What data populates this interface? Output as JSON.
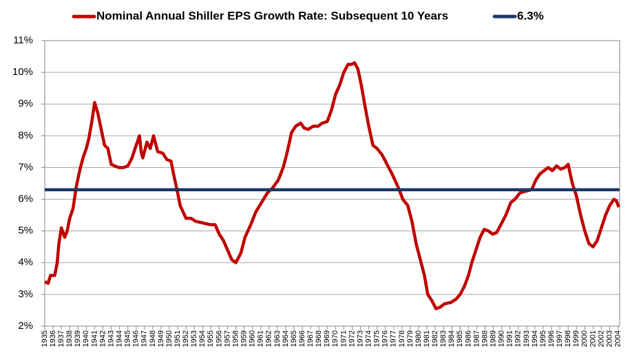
{
  "chart_data": {
    "type": "line",
    "series": [
      {
        "name": "Nominal Annual Shiller EPS Growth Rate: Subsequent 10 Years",
        "color": "#c00000",
        "x": [
          1935.0,
          1935.4,
          1935.7,
          1936.2,
          1936.5,
          1936.7,
          1937.0,
          1937.4,
          1937.7,
          1938.0,
          1938.4,
          1938.8,
          1939.2,
          1939.6,
          1940.0,
          1940.3,
          1940.7,
          1941.0,
          1941.4,
          1941.8,
          1942.2,
          1942.6,
          1943.0,
          1943.4,
          1943.9,
          1944.5,
          1945.0,
          1945.5,
          1946.0,
          1946.4,
          1946.6,
          1946.8,
          1947.3,
          1947.7,
          1948.1,
          1948.6,
          1949.2,
          1949.7,
          1950.2,
          1950.5,
          1951.0,
          1951.3,
          1952.0,
          1952.6,
          1953.2,
          1954.1,
          1954.9,
          1955.5,
          1956.0,
          1956.5,
          1957.0,
          1957.5,
          1958.0,
          1958.6,
          1959.1,
          1959.8,
          1960.4,
          1961.1,
          1961.8,
          1962.4,
          1963.1,
          1963.7,
          1964.2,
          1964.7,
          1965.2,
          1965.8,
          1966.2,
          1966.7,
          1967.3,
          1967.9,
          1968.4,
          1969.0,
          1969.5,
          1970.0,
          1970.5,
          1971.0,
          1971.5,
          1971.9,
          1972.3,
          1972.7,
          1973.1,
          1973.5,
          1974.0,
          1974.5,
          1975.0,
          1975.6,
          1976.2,
          1976.8,
          1977.5,
          1978.1,
          1978.7,
          1979.2,
          1979.7,
          1980.2,
          1980.7,
          1981.1,
          1981.6,
          1982.1,
          1982.6,
          1983.1,
          1983.9,
          1984.5,
          1985.0,
          1985.5,
          1986.0,
          1986.4,
          1986.9,
          1987.4,
          1987.9,
          1988.4,
          1988.9,
          1989.4,
          1989.9,
          1990.5,
          1991.1,
          1991.6,
          1992.2,
          1992.8,
          1993.6,
          1994.1,
          1994.6,
          1995.1,
          1995.6,
          1996.1,
          1996.6,
          1997.1,
          1997.6,
          1998.0,
          1998.5,
          1999.0,
          1999.5,
          2000.0,
          2000.5,
          2001.0,
          2001.5,
          2002.0,
          2002.5,
          2003.0,
          2003.5,
          2003.8,
          2004.1
        ],
        "values": [
          3.4,
          3.35,
          3.6,
          3.6,
          4.0,
          4.6,
          5.1,
          4.8,
          5.0,
          5.4,
          5.7,
          6.4,
          6.9,
          7.3,
          7.6,
          7.9,
          8.5,
          9.05,
          8.7,
          8.2,
          7.7,
          7.6,
          7.1,
          7.05,
          7.0,
          7.0,
          7.05,
          7.3,
          7.7,
          8.0,
          7.5,
          7.3,
          7.8,
          7.6,
          8.0,
          7.5,
          7.45,
          7.25,
          7.2,
          6.8,
          6.2,
          5.8,
          5.4,
          5.4,
          5.3,
          5.25,
          5.2,
          5.2,
          4.9,
          4.7,
          4.4,
          4.1,
          4.0,
          4.3,
          4.8,
          5.2,
          5.6,
          5.9,
          6.2,
          6.35,
          6.6,
          7.0,
          7.5,
          8.1,
          8.3,
          8.4,
          8.25,
          8.2,
          8.3,
          8.3,
          8.4,
          8.45,
          8.8,
          9.3,
          9.6,
          10.0,
          10.25,
          10.25,
          10.3,
          10.1,
          9.6,
          9.0,
          8.3,
          7.7,
          7.6,
          7.4,
          7.1,
          6.8,
          6.4,
          6.0,
          5.8,
          5.3,
          4.6,
          4.1,
          3.6,
          3.0,
          2.8,
          2.55,
          2.6,
          2.7,
          2.75,
          2.85,
          3.0,
          3.25,
          3.6,
          4.0,
          4.4,
          4.8,
          5.05,
          5.0,
          4.9,
          4.95,
          5.2,
          5.5,
          5.9,
          6.0,
          6.2,
          6.25,
          6.3,
          6.6,
          6.8,
          6.9,
          7.0,
          6.9,
          7.05,
          6.95,
          7.0,
          7.1,
          6.5,
          6.1,
          5.5,
          5.0,
          4.6,
          4.5,
          4.7,
          5.1,
          5.5,
          5.8,
          6.0,
          5.95,
          5.75
        ]
      }
    ],
    "reference_lines": [
      {
        "name": "6.3%",
        "value": 6.3,
        "color": "#1f3864"
      }
    ],
    "xlim": [
      1935,
      2004.2
    ],
    "xticks": [
      1935,
      1936,
      1937,
      1938,
      1939,
      1940,
      1941,
      1942,
      1943,
      1944,
      1945,
      1946,
      1947,
      1948,
      1949,
      1950,
      1951,
      1952,
      1953,
      1954,
      1955,
      1956,
      1957,
      1958,
      1959,
      1960,
      1961,
      1962,
      1963,
      1964,
      1965,
      1966,
      1967,
      1968,
      1969,
      1970,
      1971,
      1972,
      1973,
      1974,
      1975,
      1976,
      1977,
      1978,
      1979,
      1980,
      1981,
      1982,
      1983,
      1984,
      1985,
      1986,
      1987,
      1988,
      1989,
      1990,
      1991,
      1992,
      1993,
      1994,
      1995,
      1996,
      1997,
      1998,
      1999,
      2000,
      2001,
      2002,
      2003,
      2004
    ],
    "ylim": [
      2,
      11
    ],
    "yticks": [
      {
        "value": 2,
        "label": "2%"
      },
      {
        "value": 3,
        "label": "3%"
      },
      {
        "value": 4,
        "label": "4%"
      },
      {
        "value": 5,
        "label": "5%"
      },
      {
        "value": 6,
        "label": "6%"
      },
      {
        "value": 7,
        "label": "7%"
      },
      {
        "value": 8,
        "label": "8%"
      },
      {
        "value": 9,
        "label": "9%"
      },
      {
        "value": 10,
        "label": "10%"
      },
      {
        "value": 11,
        "label": "11%"
      }
    ],
    "grid": true,
    "legend": "top"
  }
}
